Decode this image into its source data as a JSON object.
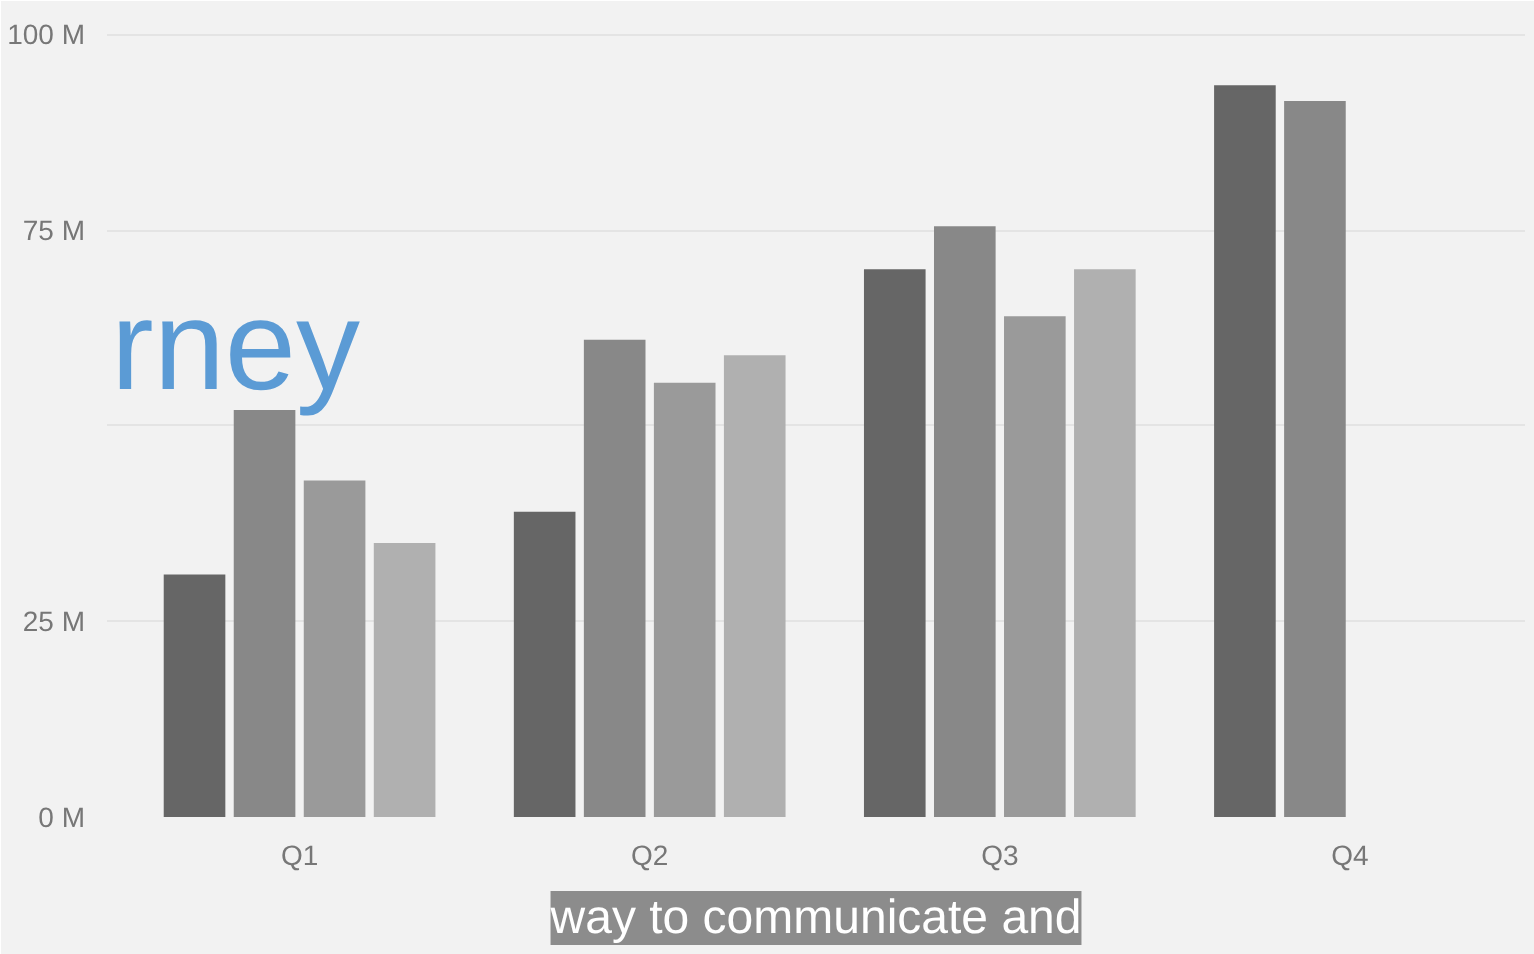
{
  "chart_data": {
    "type": "bar",
    "categories": [
      "Q1",
      "Q2",
      "Q3",
      "Q4"
    ],
    "series": [
      {
        "color": "#666666",
        "values": [
          31,
          39,
          70,
          93.5
        ]
      },
      {
        "color": "#888888",
        "values": [
          52,
          61,
          75.5,
          91.5
        ]
      },
      {
        "color": "#9a9a9a",
        "values": [
          43,
          55.5,
          64,
          null
        ]
      },
      {
        "color": "#b0b0b0",
        "values": [
          35,
          59,
          70,
          null
        ]
      }
    ],
    "ylim": [
      0,
      103
    ],
    "yticks": [
      {
        "value": 0,
        "label": "0 M"
      },
      {
        "value": 25,
        "label": "25 M"
      },
      {
        "value": 50,
        "label": null
      },
      {
        "value": 75,
        "label": "75 M"
      },
      {
        "value": 100,
        "label": "100 M"
      }
    ],
    "grid": "y",
    "annotations": [
      "rney",
      "way to communicate and"
    ]
  }
}
